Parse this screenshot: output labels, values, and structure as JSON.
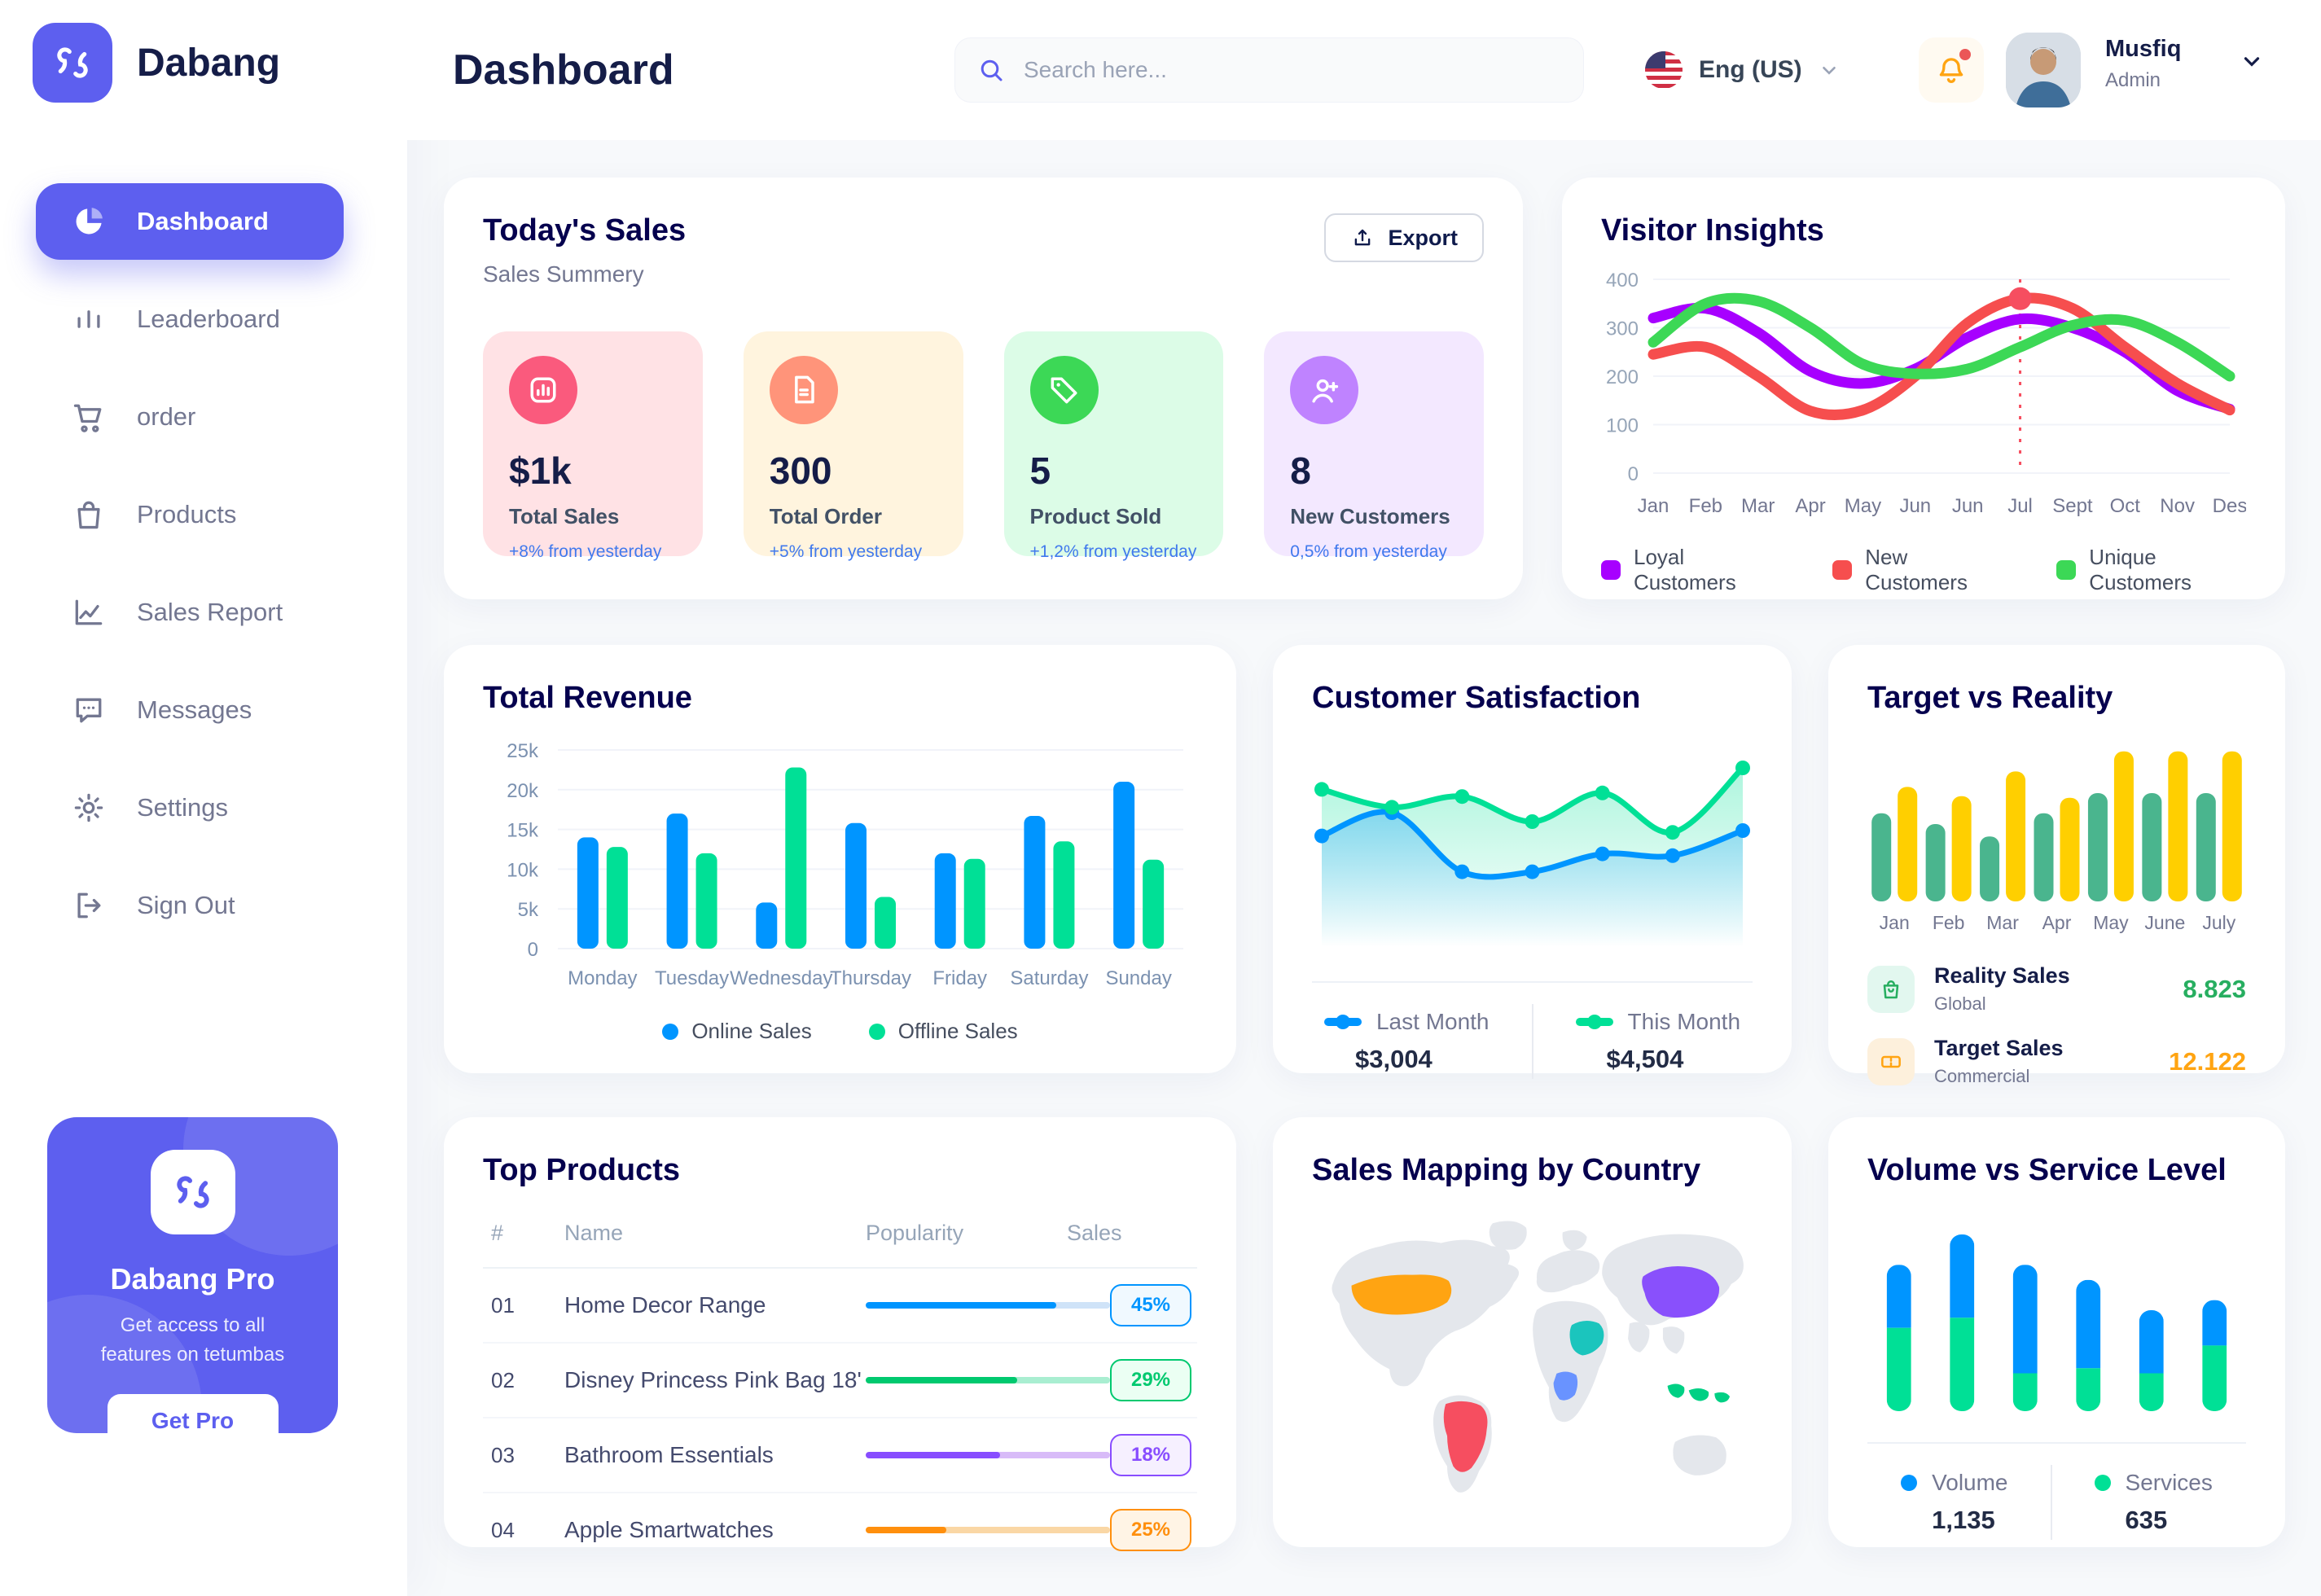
{
  "topbar": {
    "brand": "Dabang",
    "page_title": "Dashboard",
    "search_placeholder": "Search here...",
    "language": "Eng (US)",
    "user_name": "Musfiq",
    "user_role": "Admin"
  },
  "sidebar": {
    "items": [
      {
        "label": "Dashboard",
        "icon": "pie-chart",
        "active": true
      },
      {
        "label": "Leaderboard",
        "icon": "bar-chart",
        "active": false
      },
      {
        "label": "order",
        "icon": "cart",
        "active": false
      },
      {
        "label": "Products",
        "icon": "bag",
        "active": false
      },
      {
        "label": "Sales Report",
        "icon": "line-chart",
        "active": false
      },
      {
        "label": "Messages",
        "icon": "message",
        "active": false
      },
      {
        "label": "Settings",
        "icon": "gear",
        "active": false
      },
      {
        "label": "Sign Out",
        "icon": "sign-out",
        "active": false
      }
    ],
    "pro": {
      "title": "Dabang Pro",
      "desc": "Get access to all features on tetumbas",
      "button": "Get Pro"
    }
  },
  "todays_sales": {
    "title": "Today's Sales",
    "subtitle": "Sales Summery",
    "export_label": "Export",
    "stats": [
      {
        "value": "$1k",
        "label": "Total Sales",
        "change": "+8% from yesterday",
        "bg": "#FFE2E5",
        "icon_bg": "#FA5A7D",
        "icon": "stats"
      },
      {
        "value": "300",
        "label": "Total Order",
        "change": "+5% from yesterday",
        "bg": "#FFF4DE",
        "icon_bg": "#FF947A",
        "icon": "receipt"
      },
      {
        "value": "5",
        "label": "Product Sold",
        "change": "+1,2% from yesterday",
        "bg": "#DCFCE7",
        "icon_bg": "#3CD856",
        "icon": "tag"
      },
      {
        "value": "8",
        "label": "New Customers",
        "change": "0,5% from yesterday",
        "bg": "#F3E8FF",
        "icon_bg": "#BF83FF",
        "icon": "user-plus"
      }
    ]
  },
  "chart_data": [
    {
      "type": "line",
      "title": "Visitor Insights",
      "x": [
        "Jan",
        "Feb",
        "Mar",
        "Apr",
        "May",
        "Jun",
        "Jun",
        "Jul",
        "Sept",
        "Oct",
        "Nov",
        "Des"
      ],
      "y_ticks": [
        0,
        100,
        200,
        300,
        400
      ],
      "ylim": [
        0,
        400
      ],
      "marker_index": 7,
      "series": [
        {
          "name": "Loyal Customers",
          "color": "#A700FF",
          "values": [
            320,
            340,
            290,
            210,
            185,
            215,
            280,
            318,
            300,
            250,
            170,
            132
          ]
        },
        {
          "name": "New Customers",
          "color": "#F64E4E",
          "values": [
            245,
            260,
            200,
            128,
            130,
            200,
            310,
            360,
            340,
            260,
            185,
            130
          ]
        },
        {
          "name": "Unique Customers",
          "color": "#3CD856",
          "values": [
            270,
            350,
            355,
            300,
            225,
            205,
            215,
            260,
            305,
            315,
            270,
            200
          ]
        }
      ]
    },
    {
      "type": "bar",
      "title": "Total Revenue",
      "categories": [
        "Monday",
        "Tuesday",
        "Wednesday",
        "Thursday",
        "Friday",
        "Saturday",
        "Sunday"
      ],
      "y_ticks": [
        "0",
        "5k",
        "10k",
        "15k",
        "20k",
        "25k"
      ],
      "ylim": [
        0,
        25
      ],
      "series": [
        {
          "name": "Online Sales",
          "color": "#0095FF",
          "values": [
            14,
            17,
            5.8,
            15.8,
            12,
            16.7,
            21
          ]
        },
        {
          "name": "Offline Sales",
          "color": "#00E096",
          "values": [
            12.8,
            12,
            22.8,
            6.5,
            11.3,
            13.5,
            11.2
          ]
        }
      ]
    },
    {
      "type": "area",
      "title": "Customer Satisfaction",
      "ylim": [
        0,
        110
      ],
      "series": [
        {
          "name": "Last Month",
          "color": "#0095FF",
          "total": "$3,004",
          "values": [
            62,
            75,
            42,
            42,
            52,
            51,
            65
          ]
        },
        {
          "name": "This Month",
          "color": "#00E096",
          "total": "$4,504",
          "values": [
            88,
            78,
            84,
            70,
            86,
            64,
            100
          ]
        }
      ]
    },
    {
      "type": "bar",
      "title": "Target vs Reality",
      "categories": [
        "Jan",
        "Feb",
        "Mar",
        "Apr",
        "May",
        "June",
        "July"
      ],
      "ylim": [
        0,
        100
      ],
      "series": [
        {
          "name": "Reality Sales",
          "color": "#4AB58E",
          "values": [
            57,
            50,
            42,
            57,
            70,
            70,
            70
          ]
        },
        {
          "name": "Target Sales",
          "color": "#FFCF00",
          "values": [
            74,
            68,
            84,
            67,
            97,
            97,
            97
          ]
        }
      ],
      "legend": [
        {
          "title": "Reality Sales",
          "subtitle": "Global",
          "value": "8.823",
          "value_color": "#27AE60",
          "icon": "bag2",
          "icon_bg": "#E2F7EF",
          "icon_color": "#27AE60"
        },
        {
          "title": "Target Sales",
          "subtitle": "Commercial",
          "value": "12.122",
          "value_color": "#FFA412",
          "icon": "ticket",
          "icon_bg": "#FDF0DC",
          "icon_color": "#FFA412"
        }
      ]
    },
    {
      "type": "stacked-bar",
      "title": "Volume vs Service Level",
      "ylim": [
        0,
        76
      ],
      "series": [
        {
          "name": "Volume",
          "color": "#0095FF",
          "total": "1,135",
          "values": [
            25,
            33,
            43,
            35,
            25,
            18
          ]
        },
        {
          "name": "Services",
          "color": "#00E096",
          "total": "635",
          "values": [
            33,
            37,
            15,
            17,
            15,
            26
          ]
        }
      ]
    }
  ],
  "top_products": {
    "title": "Top Products",
    "headers": [
      "#",
      "Name",
      "Popularity",
      "Sales"
    ],
    "rows": [
      {
        "id": "01",
        "name": "Home Decor Range",
        "sales": "45%",
        "color": "#0095FF",
        "track": "#CFE3F8",
        "badge_bg": "#F0F9FF",
        "fill": 0.78
      },
      {
        "id": "02",
        "name": "Disney Princess Pink Bag 18'",
        "sales": "29%",
        "color": "#00C96F",
        "track": "#A9EED1",
        "badge_bg": "#EBFFF3",
        "fill": 0.62
      },
      {
        "id": "03",
        "name": "Bathroom Essentials",
        "sales": "18%",
        "color": "#884DFF",
        "track": "#D8BBF8",
        "badge_bg": "#F6F0FF",
        "fill": 0.55
      },
      {
        "id": "04",
        "name": "Apple Smartwatches",
        "sales": "25%",
        "color": "#FF8F0D",
        "track": "#FAD7A5",
        "badge_bg": "#FFF4E5",
        "fill": 0.33
      }
    ]
  },
  "sales_map": {
    "title": "Sales Mapping by Country",
    "countries": [
      {
        "name": "United States",
        "color": "#FFA412"
      },
      {
        "name": "Brazil",
        "color": "#F64E60"
      },
      {
        "name": "China",
        "color": "#8950FC"
      },
      {
        "name": "Saudi Arabia",
        "color": "#1BC5BD"
      },
      {
        "name": "DR Congo",
        "color": "#6993FF"
      },
      {
        "name": "Indonesia",
        "color": "#00D084"
      }
    ]
  }
}
